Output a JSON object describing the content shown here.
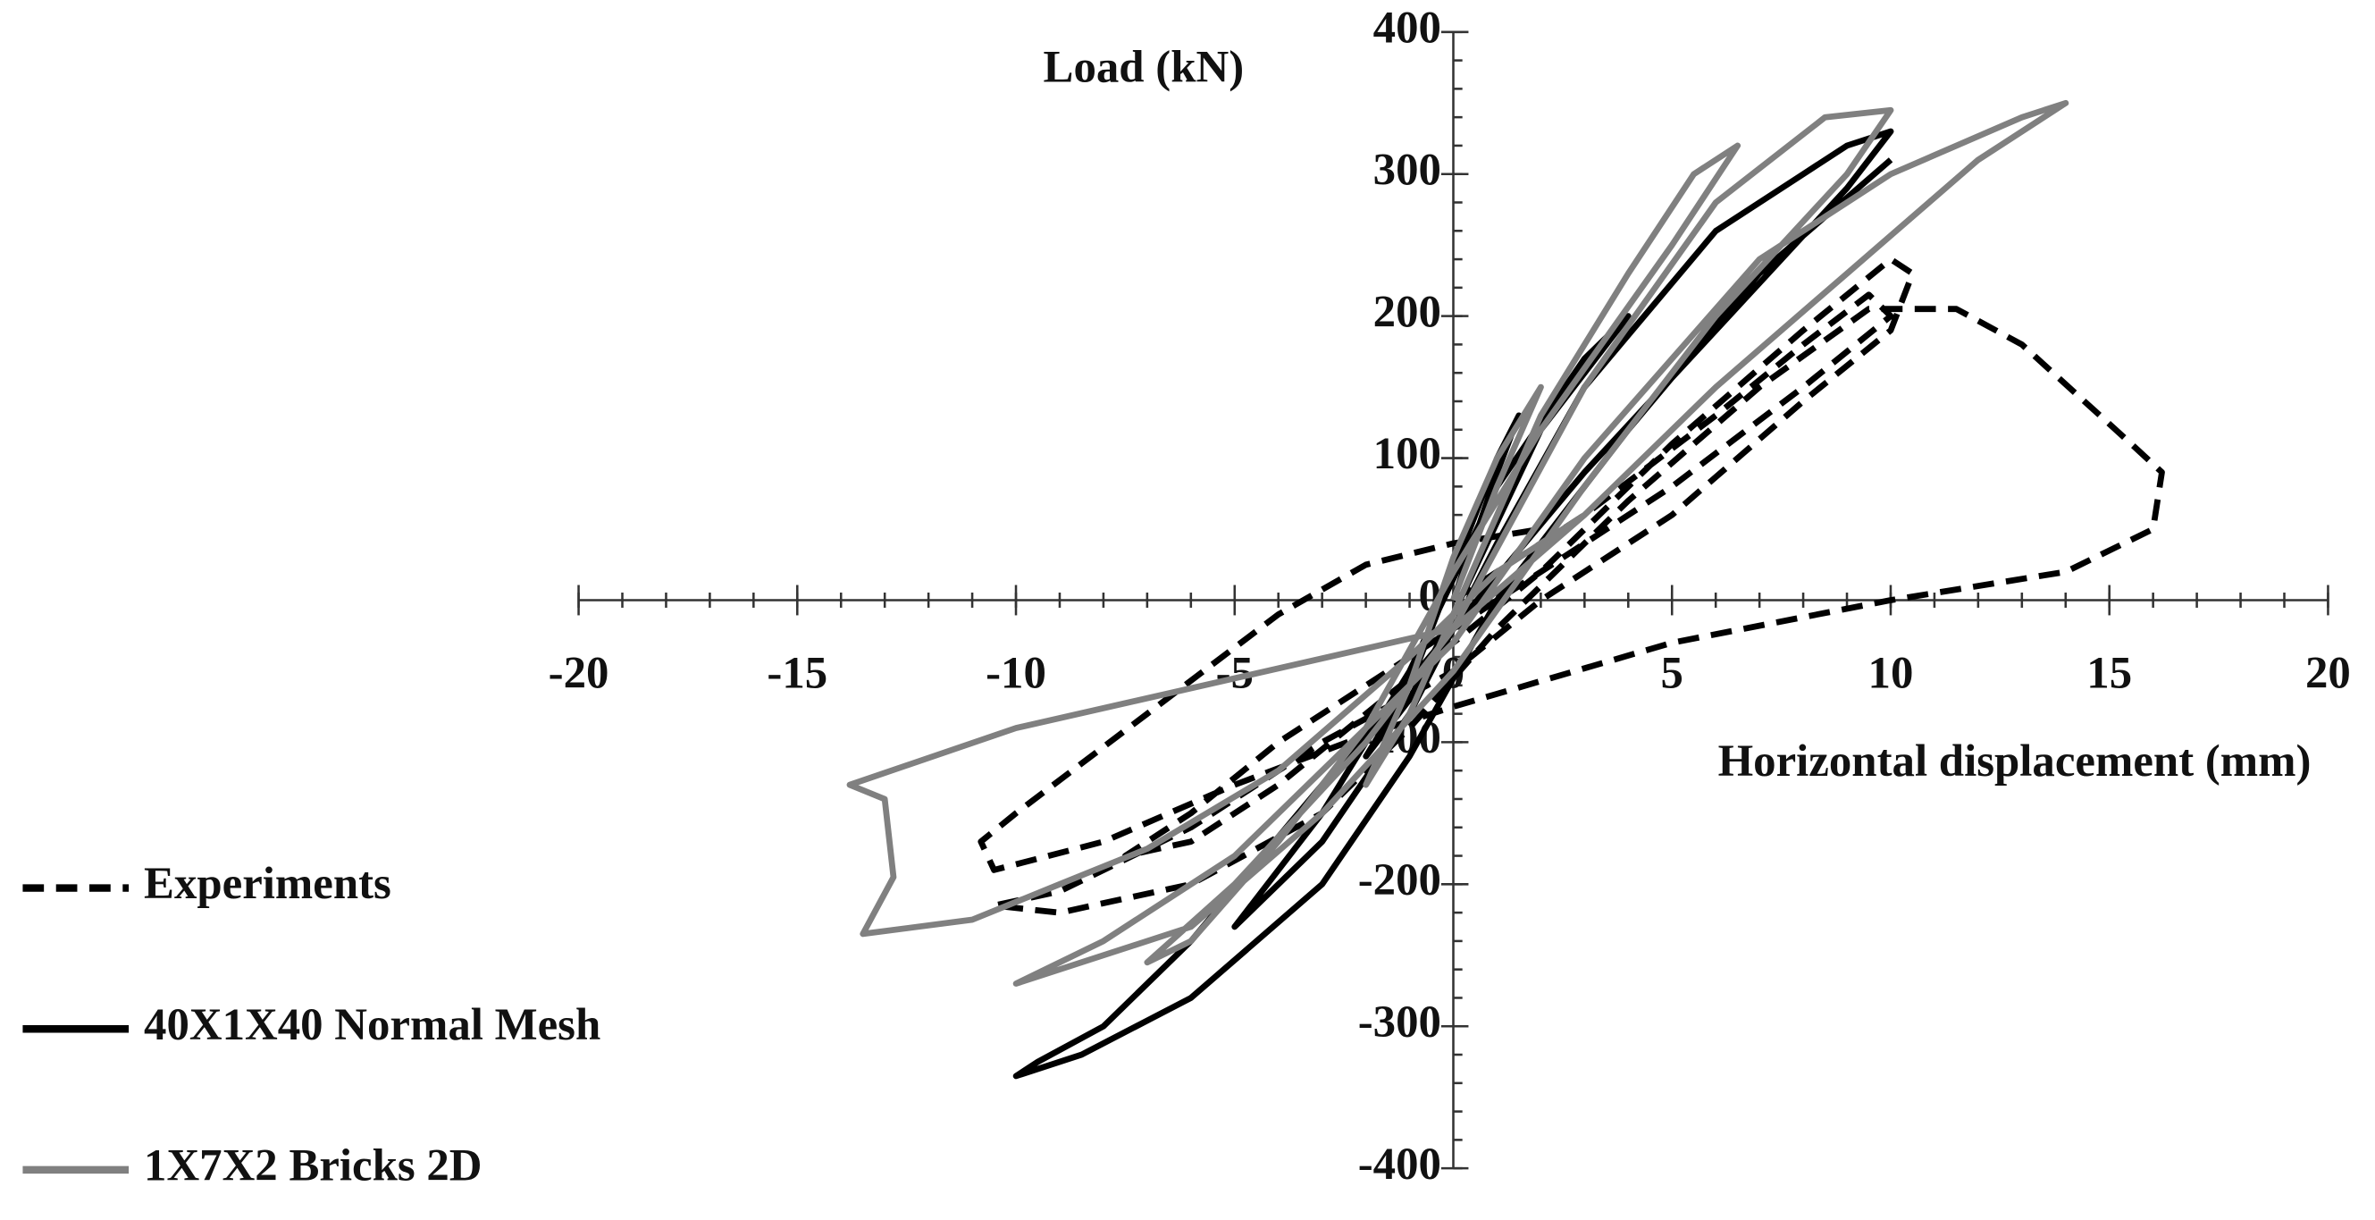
{
  "chart_data": {
    "type": "line",
    "x_label": "Horizontal displacement (mm)",
    "y_label": "Load (kN)",
    "xlim": [
      -20,
      20
    ],
    "xticks": [
      -20,
      -15,
      -10,
      -5,
      0,
      5,
      10,
      15,
      20
    ],
    "ylim": [
      -400,
      400
    ],
    "yticks": [
      -400,
      -300,
      -200,
      -100,
      0,
      100,
      200,
      300,
      400
    ],
    "x_minor_step": 1,
    "y_minor_step": 20,
    "grid": false,
    "legend": "lower left",
    "series": [
      {
        "name": "Experiments",
        "color": "#000000",
        "line_style": "dashed",
        "x": [
          0,
          3,
          6,
          8,
          9.5,
          10,
          8,
          5,
          2,
          0,
          -2,
          -4,
          -6,
          -7.5,
          -6,
          -4,
          -2,
          0,
          2,
          5,
          8,
          10,
          10.5,
          10,
          8,
          5,
          2,
          0,
          -3,
          -6,
          -9,
          -10.5,
          -9,
          -6,
          -3,
          -1,
          1,
          4,
          7,
          9.5,
          11.5,
          13,
          15.5,
          16.2,
          16,
          14,
          10,
          5,
          0,
          -2,
          -5,
          -8,
          -10.5,
          -10.8,
          -10,
          -7,
          -4,
          -2,
          0,
          2
        ],
        "values": [
          0,
          60,
          130,
          180,
          215,
          200,
          150,
          80,
          20,
          -20,
          -60,
          -100,
          -150,
          -180,
          -170,
          -130,
          -80,
          -30,
          20,
          110,
          190,
          240,
          230,
          190,
          140,
          60,
          0,
          -50,
          -100,
          -160,
          -205,
          -215,
          -220,
          -200,
          -150,
          -90,
          -20,
          70,
          150,
          205,
          205,
          180,
          110,
          90,
          50,
          20,
          0,
          -30,
          -75,
          -95,
          -130,
          -170,
          -190,
          -170,
          -150,
          -80,
          -10,
          25,
          40,
          50
        ]
      },
      {
        "name": "40X1X40 Normal Mesh",
        "color": "#000000",
        "line_style": "solid",
        "x": [
          0,
          1,
          1.5,
          1,
          0,
          -1,
          -2,
          -1,
          0,
          2,
          4,
          3,
          1,
          -1,
          -3,
          -5,
          -3,
          -1,
          1,
          3,
          6,
          8,
          9,
          10,
          9,
          6,
          3,
          0,
          -3,
          -6,
          -8,
          -9.5,
          -10,
          -8.5,
          -6,
          -3,
          -1,
          1,
          4,
          7,
          10
        ],
        "values": [
          0,
          90,
          130,
          100,
          20,
          -60,
          -110,
          -70,
          -10,
          120,
          200,
          170,
          80,
          -50,
          -150,
          -230,
          -170,
          -80,
          40,
          150,
          260,
          300,
          320,
          330,
          290,
          190,
          90,
          -20,
          -130,
          -240,
          -300,
          -325,
          -335,
          -320,
          -280,
          -200,
          -110,
          0,
          120,
          230,
          310
        ]
      },
      {
        "name": "1X7X2 Bricks 2D",
        "color": "#808080",
        "line_style": "solid",
        "x": [
          0,
          1,
          2,
          1,
          0,
          -1,
          -2,
          -1,
          0,
          2,
          4,
          5.5,
          6.5,
          5,
          2,
          0,
          -2,
          -4,
          -6,
          -7,
          -5,
          -2,
          0,
          3,
          6,
          8.5,
          10,
          9,
          6,
          3,
          0,
          -3,
          -6,
          -10,
          -8,
          -5,
          -2,
          0,
          3,
          7,
          10,
          13,
          14,
          12,
          9,
          6,
          3,
          0,
          -5,
          -10,
          -13.8,
          -13,
          -12.8,
          -13.5,
          -11,
          -9,
          -7,
          -4,
          -1,
          1,
          3
        ],
        "values": [
          0,
          80,
          150,
          100,
          30,
          -60,
          -130,
          -80,
          -10,
          130,
          230,
          300,
          320,
          250,
          120,
          20,
          -90,
          -170,
          -240,
          -255,
          -200,
          -100,
          -20,
          150,
          280,
          340,
          345,
          300,
          200,
          80,
          -50,
          -150,
          -230,
          -270,
          -240,
          -180,
          -90,
          -30,
          100,
          240,
          300,
          340,
          350,
          310,
          230,
          150,
          60,
          -20,
          -55,
          -90,
          -130,
          -140,
          -195,
          -235,
          -225,
          -200,
          -175,
          -120,
          -40,
          20,
          60
        ]
      }
    ]
  }
}
